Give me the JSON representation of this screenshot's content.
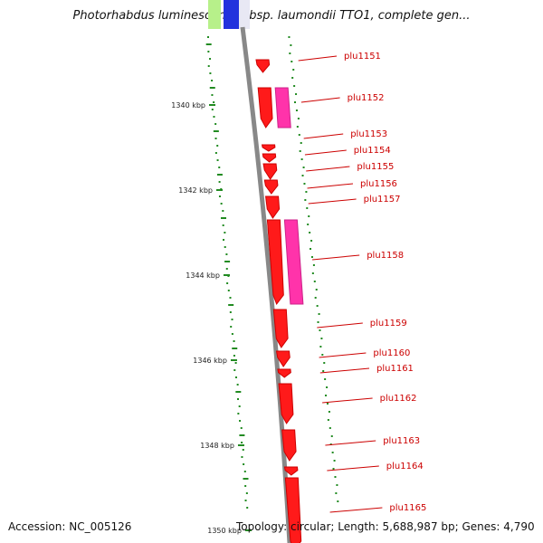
{
  "title": "Photorhabdus luminescens subsp. laumondii TTO1, complete gen...",
  "accession": "Accession: NC_005126",
  "summary": "Topology: circular; Length: 5,688,987 bp; Genes: 4,790",
  "scale": [
    "1340 kbp",
    "1342 kbp",
    "1344 kbp",
    "1346 kbp",
    "1348 kbp",
    "1350 kbp"
  ],
  "genes": [
    {
      "name": "plu1151",
      "strand": "reverse",
      "length": "short",
      "paralog": false
    },
    {
      "name": "plu1152",
      "strand": "reverse",
      "length": "medium",
      "paralog": true
    },
    {
      "name": "plu1153",
      "strand": "forward",
      "length": "tiny",
      "paralog": false
    },
    {
      "name": "plu1154",
      "strand": "forward",
      "length": "tiny",
      "paralog": false
    },
    {
      "name": "plu1155",
      "strand": "forward",
      "length": "short",
      "paralog": false
    },
    {
      "name": "plu1156",
      "strand": "forward",
      "length": "short",
      "paralog": false
    },
    {
      "name": "plu1157",
      "strand": "forward",
      "length": "short",
      "paralog": false
    },
    {
      "name": "plu1158",
      "strand": "forward",
      "length": "long",
      "paralog": true
    },
    {
      "name": "plu1159",
      "strand": "forward",
      "length": "medium",
      "paralog": false
    },
    {
      "name": "plu1160",
      "strand": "forward",
      "length": "short",
      "paralog": false
    },
    {
      "name": "plu1161",
      "strand": "forward",
      "length": "tiny",
      "paralog": false
    },
    {
      "name": "plu1162",
      "strand": "forward",
      "length": "medium",
      "paralog": false
    },
    {
      "name": "plu1163",
      "strand": "forward",
      "length": "medium",
      "paralog": false
    },
    {
      "name": "plu1164",
      "strand": "forward",
      "length": "tiny",
      "paralog": false
    },
    {
      "name": "plu1165",
      "strand": "forward",
      "length": "medium",
      "paralog": false
    }
  ],
  "colors": {
    "gene": "#ff1a1a",
    "gene_dark": "#cc0000",
    "paralog": "#ff33aa",
    "backbone": "#888888",
    "gc": "#228b22",
    "label": "#cc0000",
    "top_green": "#b7f08a",
    "top_blue": "#2233dd"
  }
}
